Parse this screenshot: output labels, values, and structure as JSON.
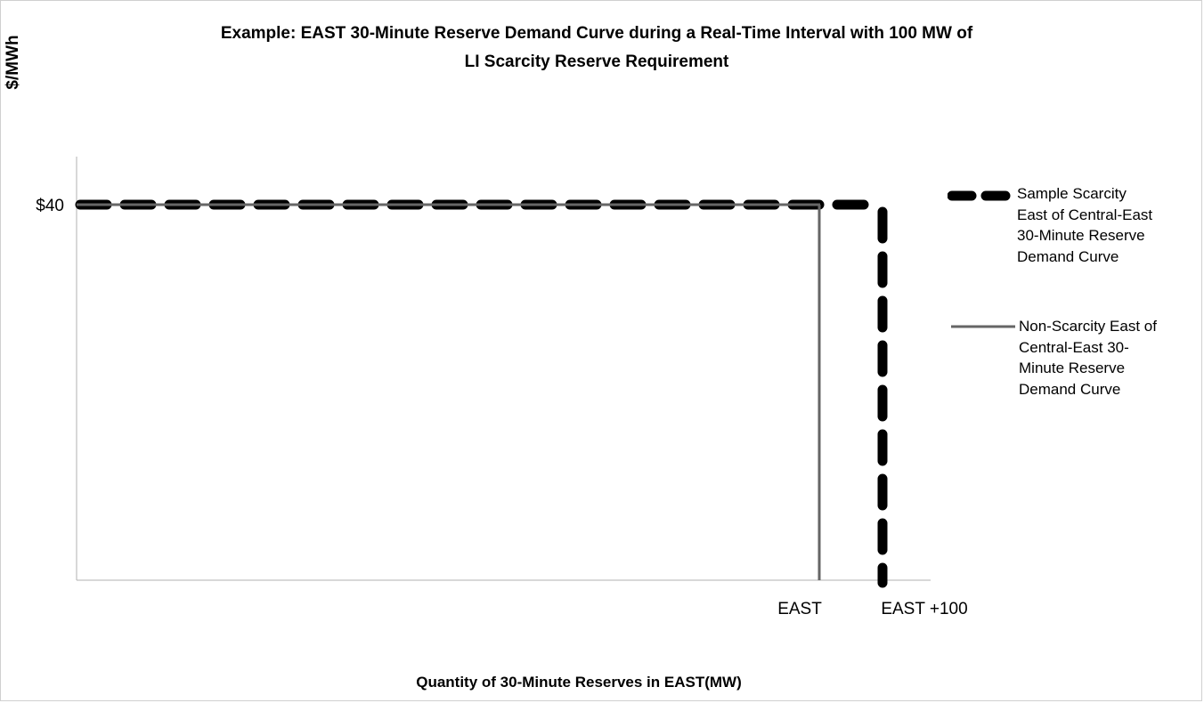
{
  "chart_data": {
    "type": "line",
    "title": "Example: EAST 30-Minute Reserve Demand Curve during a Real-Time Interval with 100 MW of LI Scarcity Reserve Requirement",
    "title_lines": [
      "Example: EAST 30-Minute Reserve Demand Curve during a Real-Time Interval with 100 MW of",
      "LI Scarcity Reserve Requirement"
    ],
    "ylabel": "$/MWh",
    "xlabel": "Quantity of 30-Minute Reserves in EAST(MW)",
    "y_tick_labels": [
      "$40"
    ],
    "x_tick_labels": [
      "EAST",
      "EAST +100"
    ],
    "grid": false,
    "legend_position": "right",
    "series": [
      {
        "name": "Sample Scarcity East of Central-East 30-Minute Reserve Demand Curve",
        "legend_lines": [
          "Sample Scarcity",
          "East of Central-East",
          "30-Minute Reserve",
          "Demand Curve"
        ],
        "style": "dashed",
        "color": "#000000",
        "points": [
          [
            "0",
            40
          ],
          [
            "EAST +100",
            40
          ],
          [
            "EAST +100",
            0
          ]
        ]
      },
      {
        "name": "Non-Scarcity East of Central-East 30-Minute Reserve Demand Curve",
        "legend_lines": [
          "Non-Scarcity East of",
          "Central-East 30-",
          "Minute Reserve",
          "Demand Curve"
        ],
        "style": "solid",
        "color": "#666666",
        "points": [
          [
            "0",
            40
          ],
          [
            "EAST",
            40
          ],
          [
            "EAST",
            0
          ]
        ]
      }
    ]
  }
}
